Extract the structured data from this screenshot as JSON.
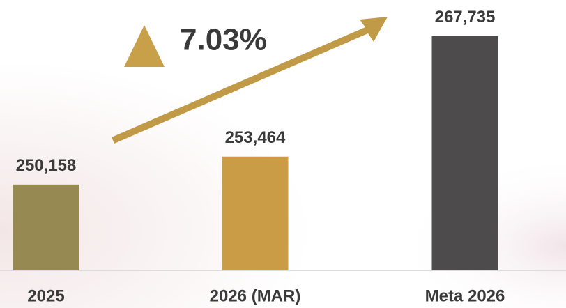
{
  "chart_data": {
    "type": "bar",
    "categories": [
      "2025",
      "2026 (MAR)",
      "Meta 2026"
    ],
    "values": [
      250158,
      253464,
      267735
    ],
    "value_labels": [
      "250,158",
      "253,464",
      "267,735"
    ],
    "colors": [
      "#968a52",
      "#c99c45",
      "#4d4b4c"
    ],
    "ylim": [
      240000,
      272000
    ],
    "annotation": "7.03%"
  }
}
